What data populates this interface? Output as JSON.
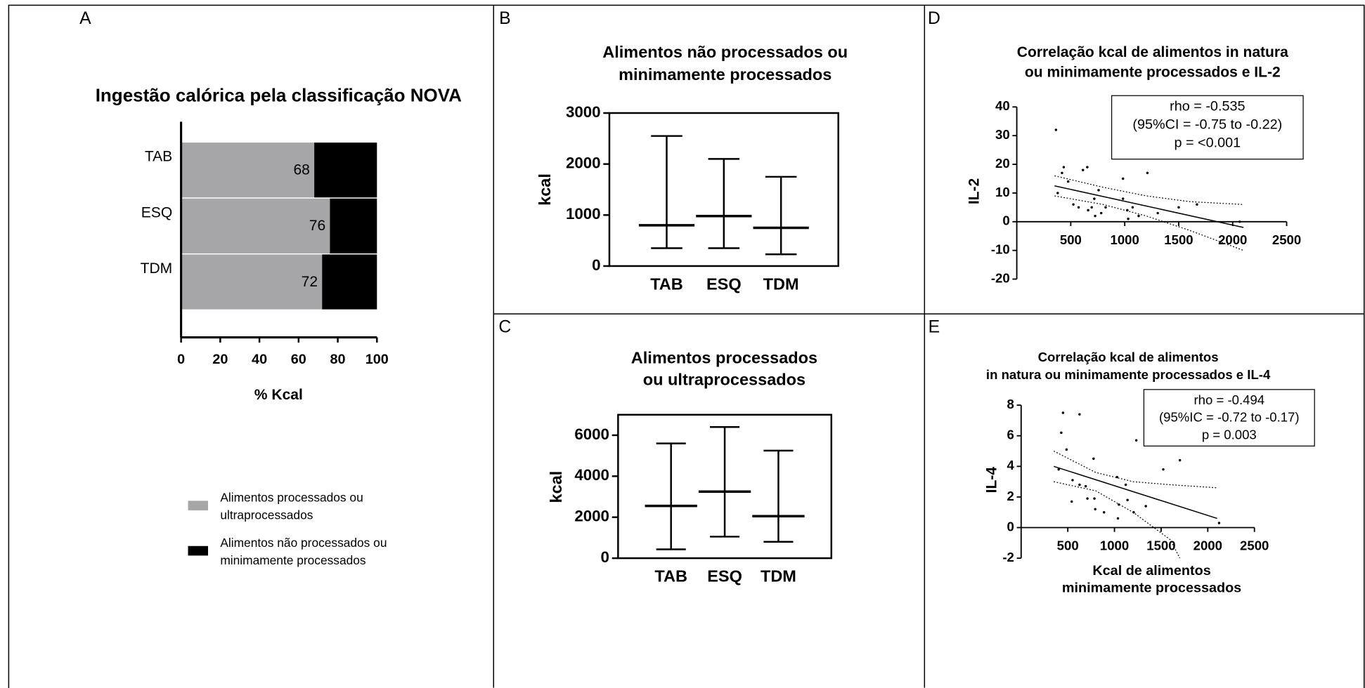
{
  "chart_data": [
    {
      "type": "bar",
      "panel": "A",
      "orientation": "horizontal",
      "stacked": true,
      "title": "Ingestão calórica pela classificação NOVA",
      "categories": [
        "TAB",
        "ESQ",
        "TDM"
      ],
      "series": [
        {
          "name": "Alimentos processados ou ultraprocessados",
          "color": "#a6a6a8",
          "values": [
            68,
            76,
            72
          ],
          "data_labels": true
        },
        {
          "name": "Alimentos não processados ou minimamente processados",
          "color": "#000000",
          "values": [
            32,
            24,
            28
          ]
        }
      ],
      "xlabel": "% Kcal",
      "xlim": [
        0,
        100
      ],
      "xticks": [
        0,
        20,
        40,
        60,
        80,
        100
      ]
    },
    {
      "type": "range",
      "panel": "B",
      "title": [
        "Alimentos não processados ou",
        "minimamente processados"
      ],
      "categories": [
        "TAB",
        "ESQ",
        "TDM"
      ],
      "min": [
        350,
        350,
        230
      ],
      "median": [
        800,
        980,
        750
      ],
      "max": [
        2550,
        2100,
        1750
      ],
      "ylabel": "kcal",
      "ylim": [
        0,
        3000
      ],
      "yticks": [
        0,
        1000,
        2000,
        3000
      ]
    },
    {
      "type": "range",
      "panel": "C",
      "title": [
        "Alimentos processados",
        "ou ultraprocessados"
      ],
      "categories": [
        "TAB",
        "ESQ",
        "TDM"
      ],
      "min": [
        430,
        1050,
        800
      ],
      "median": [
        2550,
        3250,
        2050
      ],
      "max": [
        5600,
        6400,
        5250
      ],
      "ylabel": "kcal",
      "ylim": [
        0,
        7000
      ],
      "yticks": [
        0,
        2000,
        4000,
        6000
      ]
    },
    {
      "type": "scatter",
      "panel": "D",
      "title": [
        "Correlação kcal de alimentos in natura",
        "ou minimamente processados e IL-2"
      ],
      "annotation": [
        "rho = -0.535",
        "(95%CI = -0.75 to -0.22)",
        "p = <0.001"
      ],
      "x": [
        363,
        435,
        419,
        613,
        653,
        476,
        379,
        758,
        524,
        573,
        694,
        661,
        782,
        823,
        726,
        984,
        984,
        1024,
        1073,
        1032,
        1210,
        1306,
        1129,
        1500,
        1669,
        2065,
        718
      ],
      "values": [
        32,
        19,
        17,
        18,
        19,
        14,
        10,
        11,
        6,
        5,
        5,
        4,
        3,
        5,
        2,
        15,
        8,
        4,
        5,
        1,
        17,
        3,
        2,
        5,
        6,
        0,
        8
      ],
      "fit": {
        "x": [
          350,
          2100
        ],
        "values": [
          12.5,
          -2
        ]
      },
      "ci_upper": {
        "x": [
          350,
          800,
          1200,
          1600,
          2100
        ],
        "values": [
          16,
          12,
          9,
          7,
          6
        ]
      },
      "ci_lower": {
        "x": [
          350,
          800,
          1200,
          1600,
          2100
        ],
        "values": [
          9,
          6,
          2,
          -3,
          -10
        ]
      },
      "ylabel": "IL-2",
      "xlim": [
        0,
        2500
      ],
      "xticks": [
        500,
        1000,
        1500,
        2000,
        2500
      ],
      "ylim": [
        -20,
        40
      ],
      "yticks": [
        -20,
        -10,
        0,
        10,
        20,
        30,
        40
      ]
    },
    {
      "type": "scatter",
      "panel": "E",
      "title": [
        "Correlação kcal de alimentos",
        "in natura ou minimamente processados e IL-4"
      ],
      "annotation": [
        "rho = -0.494",
        "(95%IC = -0.72 to -0.17)",
        "p = 0.003"
      ],
      "x": [
        449,
        626,
        430,
        486,
        402,
        551,
        626,
        692,
        776,
        710,
        542,
        785,
        794,
        888,
        1028,
        1047,
        1121,
        1234,
        1140,
        1206,
        1336,
        1523,
        1701,
        2121,
        1037
      ],
      "values": [
        7.5,
        7.4,
        6.2,
        5.1,
        3.8,
        3.1,
        2.8,
        2.7,
        4.5,
        1.9,
        1.7,
        1.9,
        1.2,
        1.0,
        3.3,
        1.5,
        2.8,
        5.7,
        1.8,
        1.0,
        1.4,
        3.8,
        4.4,
        0.3,
        0.6
      ],
      "fit": {
        "x": [
          350,
          2100
        ],
        "values": [
          4.0,
          0.6
        ]
      },
      "ci_upper": {
        "x": [
          350,
          800,
          1200,
          1600,
          2100
        ],
        "values": [
          5.0,
          3.6,
          3.0,
          2.8,
          2.6
        ]
      },
      "ci_lower": {
        "x": [
          350,
          800,
          1200,
          1600,
          1700
        ],
        "values": [
          3.0,
          2.4,
          1.0,
          -0.8,
          -2.0
        ]
      },
      "ylabel": "IL-4",
      "xlabel": [
        "Kcal de alimentos",
        "minimamente processados"
      ],
      "xlim": [
        0,
        2500
      ],
      "xticks": [
        500,
        1000,
        1500,
        2000,
        2500
      ],
      "ylim": [
        -2,
        8
      ],
      "yticks": [
        -2,
        0,
        2,
        4,
        6,
        8
      ]
    }
  ]
}
